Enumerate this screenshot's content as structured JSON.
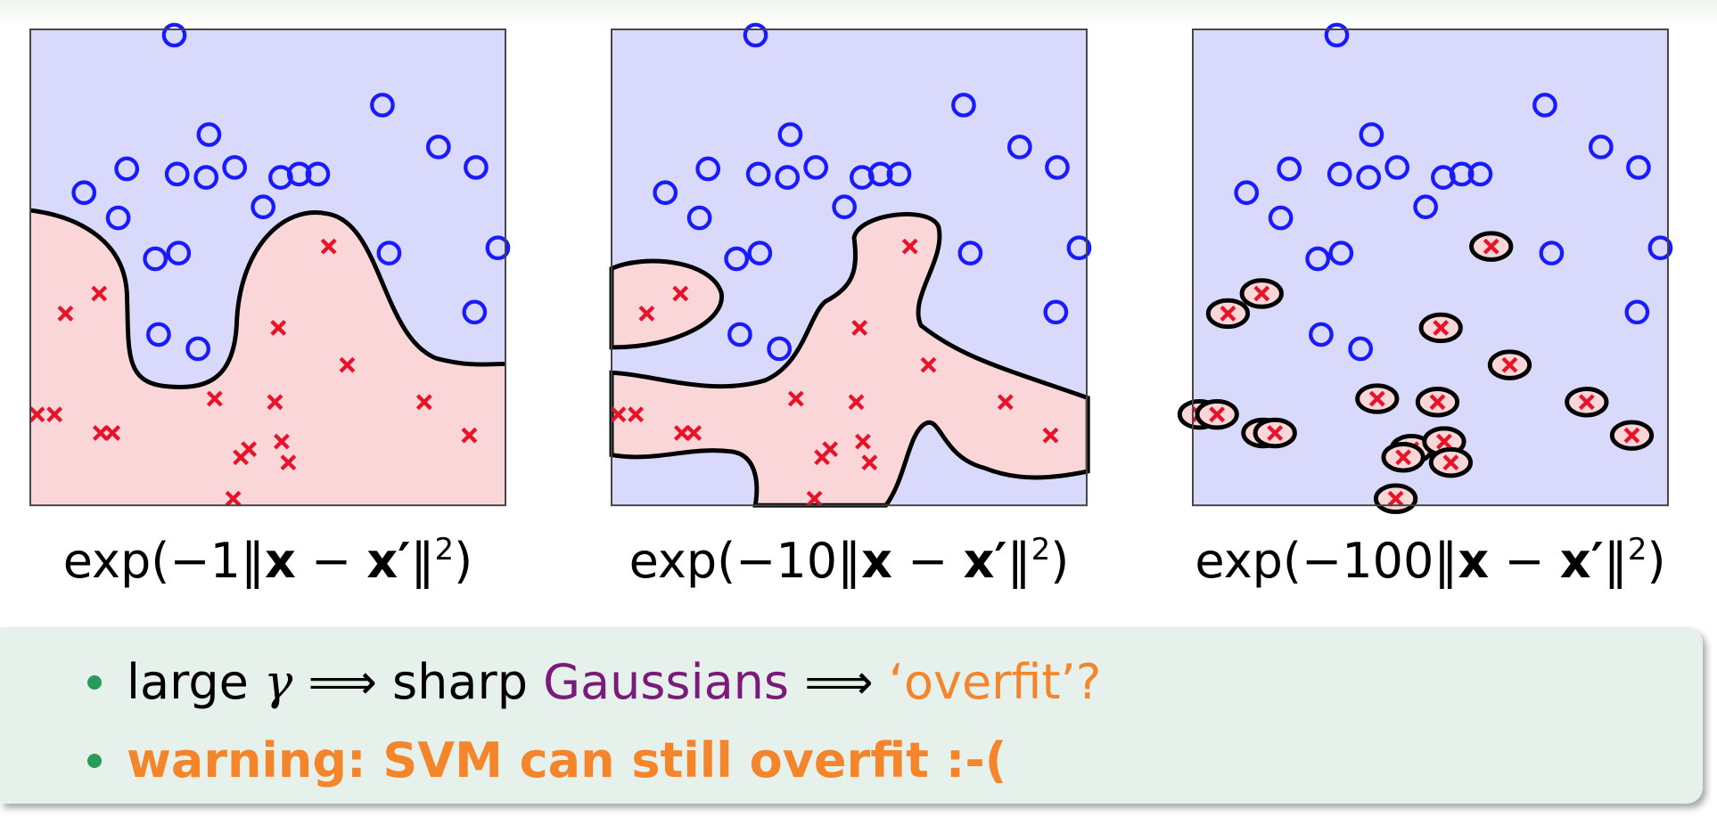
{
  "chart_data": [
    {
      "type": "scatter",
      "xlim": [
        0,
        1
      ],
      "ylim": [
        0,
        1
      ],
      "caption": [
        "exp(−1‖",
        "x",
        " − ",
        "x′",
        "‖",
        "2",
        ")"
      ],
      "series": [
        {
          "marker": "circle",
          "color": "#1a1aff",
          "x": [
            0.303,
            0.741,
            0.376,
            0.859,
            0.203,
            0.309,
            0.37,
            0.43,
            0.527,
            0.566,
            0.605,
            0.938,
            0.113,
            0.49,
            0.185,
            0.984,
            0.263,
            0.312,
            0.755,
            0.935,
            0.27,
            0.353
          ],
          "values": [
            0.988,
            0.841,
            0.779,
            0.753,
            0.707,
            0.696,
            0.689,
            0.71,
            0.689,
            0.696,
            0.696,
            0.71,
            0.657,
            0.627,
            0.604,
            0.541,
            0.518,
            0.53,
            0.53,
            0.406,
            0.359,
            0.329
          ]
        },
        {
          "marker": "cross",
          "color": "#e8132a",
          "x": [
            0.628,
            0.145,
            0.074,
            0.522,
            0.667,
            0.388,
            0.515,
            0.829,
            0.014,
            0.051,
            0.148,
            0.173,
            0.924,
            0.46,
            0.443,
            0.529,
            0.543,
            0.427
          ],
          "values": [
            0.544,
            0.445,
            0.403,
            0.373,
            0.295,
            0.224,
            0.217,
            0.217,
            0.191,
            0.191,
            0.152,
            0.152,
            0.147,
            0.118,
            0.101,
            0.134,
            0.09,
            0.014
          ]
        }
      ]
    },
    {
      "type": "scatter",
      "xlim": [
        0,
        1
      ],
      "ylim": [
        0,
        1
      ],
      "caption": [
        "exp(−10‖",
        "x",
        " − ",
        "x′",
        "‖",
        "2",
        ")"
      ],
      "series": [
        {
          "marker": "circle",
          "color": "#1a1aff",
          "x": [
            0.303,
            0.741,
            0.376,
            0.859,
            0.203,
            0.309,
            0.37,
            0.43,
            0.527,
            0.566,
            0.605,
            0.938,
            0.113,
            0.49,
            0.185,
            0.984,
            0.263,
            0.312,
            0.755,
            0.935,
            0.27,
            0.353
          ],
          "values": [
            0.988,
            0.841,
            0.779,
            0.753,
            0.707,
            0.696,
            0.689,
            0.71,
            0.689,
            0.696,
            0.696,
            0.71,
            0.657,
            0.627,
            0.604,
            0.541,
            0.518,
            0.53,
            0.53,
            0.406,
            0.359,
            0.329
          ]
        },
        {
          "marker": "cross",
          "color": "#e8132a",
          "x": [
            0.628,
            0.145,
            0.074,
            0.522,
            0.667,
            0.388,
            0.515,
            0.829,
            0.014,
            0.051,
            0.148,
            0.173,
            0.924,
            0.46,
            0.443,
            0.529,
            0.543,
            0.427
          ],
          "values": [
            0.544,
            0.445,
            0.403,
            0.373,
            0.295,
            0.224,
            0.217,
            0.217,
            0.191,
            0.191,
            0.152,
            0.152,
            0.147,
            0.118,
            0.101,
            0.134,
            0.09,
            0.014
          ]
        }
      ]
    },
    {
      "type": "scatter",
      "xlim": [
        0,
        1
      ],
      "ylim": [
        0,
        1
      ],
      "caption": [
        "exp(−100‖",
        "x",
        " − ",
        "x′",
        "‖",
        "2",
        ")"
      ],
      "series": [
        {
          "marker": "circle",
          "color": "#1a1aff",
          "x": [
            0.303,
            0.741,
            0.376,
            0.859,
            0.203,
            0.309,
            0.37,
            0.43,
            0.527,
            0.566,
            0.605,
            0.938,
            0.113,
            0.49,
            0.185,
            0.984,
            0.263,
            0.312,
            0.755,
            0.935,
            0.27,
            0.353
          ],
          "values": [
            0.988,
            0.841,
            0.779,
            0.753,
            0.707,
            0.696,
            0.689,
            0.71,
            0.689,
            0.696,
            0.696,
            0.71,
            0.657,
            0.627,
            0.604,
            0.541,
            0.518,
            0.53,
            0.53,
            0.406,
            0.359,
            0.329
          ]
        },
        {
          "marker": "cross",
          "color": "#e8132a",
          "x": [
            0.628,
            0.145,
            0.074,
            0.522,
            0.667,
            0.388,
            0.515,
            0.829,
            0.014,
            0.051,
            0.148,
            0.173,
            0.924,
            0.46,
            0.443,
            0.529,
            0.543,
            0.427
          ],
          "values": [
            0.544,
            0.445,
            0.403,
            0.373,
            0.295,
            0.224,
            0.217,
            0.217,
            0.191,
            0.191,
            0.152,
            0.152,
            0.147,
            0.118,
            0.101,
            0.134,
            0.09,
            0.014
          ]
        }
      ]
    }
  ],
  "notes": [
    [
      {
        "text": "large "
      },
      {
        "text": "γ",
        "italic": true
      },
      {
        "text": " ⟹ sharp "
      },
      {
        "text": "Gaussians",
        "color": "#7a1a7a"
      },
      {
        "text": " ⟹ "
      },
      {
        "text": "‘overfit’?",
        "color": "#f5852a"
      }
    ],
    [
      {
        "text": "warning: SVM can still overfit :-(",
        "color": "#f5852a",
        "bold": true
      }
    ]
  ]
}
